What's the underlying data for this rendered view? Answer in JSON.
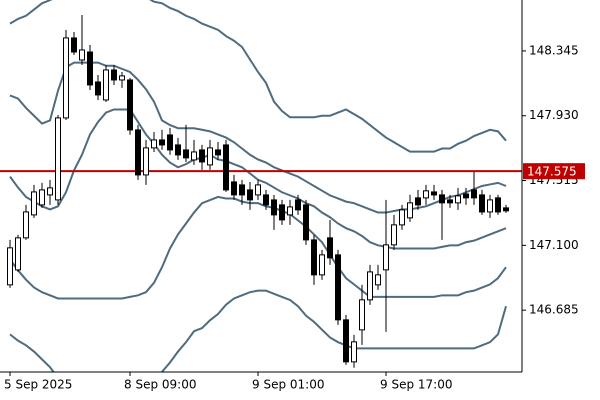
{
  "chart_data": {
    "type": "candlestick",
    "categories": [
      "5 Sep 2025",
      null,
      null,
      null,
      null,
      null,
      null,
      null,
      null,
      null,
      null,
      null,
      null,
      null,
      null,
      "8 Sep 09:00",
      null,
      null,
      null,
      null,
      null,
      null,
      null,
      null,
      null,
      null,
      null,
      null,
      null,
      null,
      null,
      "9 Sep 01:00",
      null,
      null,
      null,
      null,
      null,
      null,
      null,
      null,
      null,
      null,
      null,
      null,
      null,
      null,
      null,
      "9 Sep 17:00",
      null,
      null,
      null,
      null,
      null,
      null,
      null,
      null,
      null,
      null,
      null,
      null,
      null,
      null,
      null
    ],
    "open": [
      146.847,
      146.943,
      147.148,
      147.295,
      147.359,
      147.423,
      147.391,
      147.916,
      148.428,
      148.287,
      148.338,
      148.146,
      148.031,
      148.223,
      148.159,
      148.159,
      147.839,
      147.551,
      147.724,
      147.775,
      147.807,
      147.743,
      147.711,
      147.647,
      147.711,
      147.615,
      147.711,
      147.743,
      147.506,
      147.487,
      147.455,
      147.423,
      147.423,
      147.391,
      147.359,
      147.295,
      147.391,
      147.359,
      147.135,
      146.911,
      147.148,
      147.039,
      146.623,
      146.354,
      146.559,
      146.751,
      146.847,
      146.943,
      147.103,
      147.231,
      147.276,
      147.404,
      147.404,
      147.442,
      147.423,
      147.391,
      147.372,
      147.429,
      147.455,
      147.423,
      147.314,
      147.404,
      147.34
    ],
    "high": [
      147.135,
      147.167,
      147.359,
      147.487,
      147.5,
      147.519,
      147.935,
      148.479,
      148.466,
      148.575,
      148.383,
      148.191,
      148.255,
      148.255,
      148.21,
      148.172,
      147.871,
      147.775,
      147.826,
      147.839,
      147.852,
      147.788,
      147.871,
      147.775,
      147.743,
      147.775,
      147.762,
      147.775,
      147.551,
      147.519,
      147.506,
      147.519,
      147.455,
      147.423,
      147.391,
      147.391,
      147.423,
      147.391,
      147.167,
      147.071,
      147.263,
      147.071,
      146.655,
      146.527,
      146.847,
      146.975,
      146.975,
      147.391,
      147.295,
      147.359,
      147.423,
      147.455,
      147.487,
      147.487,
      147.455,
      147.423,
      147.468,
      147.468,
      147.57,
      147.455,
      147.423,
      147.423,
      147.359
    ],
    "low": [
      146.828,
      146.93,
      147.135,
      147.276,
      147.34,
      147.359,
      147.359,
      147.903,
      148.319,
      148.255,
      148.095,
      148.031,
      148.018,
      148.127,
      148.108,
      147.807,
      147.519,
      147.487,
      147.698,
      147.711,
      147.679,
      147.647,
      147.634,
      147.615,
      147.583,
      147.583,
      147.647,
      147.442,
      147.391,
      147.359,
      147.327,
      147.391,
      147.327,
      147.199,
      147.231,
      147.231,
      147.295,
      147.103,
      146.847,
      146.879,
      146.975,
      146.591,
      146.335,
      146.316,
      146.463,
      146.719,
      146.815,
      146.546,
      147.071,
      147.199,
      147.25,
      147.327,
      147.359,
      147.391,
      147.135,
      147.34,
      147.327,
      147.359,
      147.359,
      147.295,
      147.276,
      147.295,
      147.308
    ],
    "close": [
      147.084,
      147.148,
      147.314,
      147.442,
      147.455,
      147.468,
      147.916,
      148.428,
      148.338,
      148.351,
      148.127,
      148.063,
      148.223,
      148.159,
      148.185,
      147.839,
      147.551,
      147.724,
      147.775,
      147.743,
      147.711,
      147.679,
      147.66,
      147.698,
      147.634,
      147.724,
      147.679,
      147.455,
      147.423,
      147.423,
      147.391,
      147.487,
      147.359,
      147.295,
      147.263,
      147.346,
      147.327,
      147.135,
      146.911,
      147.039,
      147.02,
      146.623,
      146.354,
      146.482,
      146.751,
      146.93,
      146.911,
      147.103,
      147.231,
      147.327,
      147.372,
      147.359,
      147.449,
      147.423,
      147.372,
      147.372,
      147.417,
      147.404,
      147.404,
      147.314,
      147.391,
      147.314,
      147.321
    ],
    "up_color": "#ffffff",
    "down_color": "#000000",
    "series": [
      {
        "color": "#4e6b80",
        "values": [
          148.52,
          148.55,
          148.57,
          148.61,
          148.65,
          148.67,
          148.7,
          148.72,
          148.74,
          148.75,
          148.77,
          148.77,
          148.77,
          148.77,
          148.75,
          148.73,
          148.71,
          148.69,
          148.66,
          148.65,
          148.62,
          148.6,
          148.57,
          148.55,
          148.52,
          148.5,
          148.48,
          148.44,
          148.41,
          148.37,
          148.29,
          148.21,
          148.14,
          148.02,
          147.96,
          147.92,
          147.92,
          147.92,
          147.92,
          147.93,
          147.93,
          147.95,
          147.97,
          147.94,
          147.91,
          147.87,
          147.83,
          147.79,
          147.76,
          147.73,
          147.7,
          147.7,
          147.7,
          147.7,
          147.72,
          147.72,
          147.75,
          147.77,
          147.8,
          147.82,
          147.84,
          147.83,
          147.77
        ]
      },
      {
        "color": "#4e6b80",
        "values": [
          148.06,
          148.04,
          147.98,
          147.93,
          147.88,
          147.9,
          148.09,
          148.24,
          148.27,
          148.27,
          148.27,
          148.27,
          148.25,
          148.25,
          148.23,
          148.21,
          148.16,
          148.1,
          148.02,
          147.9,
          147.87,
          147.85,
          147.85,
          147.85,
          147.84,
          147.83,
          147.81,
          147.79,
          147.76,
          147.72,
          147.68,
          147.65,
          147.63,
          147.6,
          147.58,
          147.56,
          147.54,
          147.51,
          147.48,
          147.45,
          147.42,
          147.4,
          147.38,
          147.37,
          147.35,
          147.33,
          147.31,
          147.31,
          147.32,
          147.33,
          147.33,
          147.34,
          147.35,
          147.37,
          147.39,
          147.41,
          147.42,
          147.44,
          147.46,
          147.48,
          147.49,
          147.5,
          147.48
        ]
      },
      {
        "color": "#4e6b80",
        "values": [
          147.54,
          147.47,
          147.41,
          147.38,
          147.35,
          147.33,
          147.35,
          147.44,
          147.58,
          147.68,
          147.81,
          147.89,
          147.95,
          147.97,
          147.97,
          147.97,
          147.89,
          147.81,
          147.75,
          147.68,
          147.63,
          147.6,
          147.62,
          147.65,
          147.66,
          147.68,
          147.65,
          147.64,
          147.62,
          147.6,
          147.56,
          147.52,
          147.5,
          147.47,
          147.44,
          147.42,
          147.4,
          147.37,
          147.35,
          147.31,
          147.28,
          147.24,
          147.21,
          147.19,
          147.16,
          147.12,
          147.1,
          147.09,
          147.08,
          147.08,
          147.08,
          147.08,
          147.08,
          147.08,
          147.09,
          147.1,
          147.1,
          147.12,
          147.13,
          147.15,
          147.17,
          147.19,
          147.21
        ]
      },
      {
        "color": "#4e6b80",
        "values": [
          147.01,
          146.94,
          146.88,
          146.83,
          146.8,
          146.78,
          146.76,
          146.76,
          146.76,
          146.76,
          146.76,
          146.76,
          146.76,
          146.76,
          146.76,
          146.77,
          146.78,
          146.8,
          146.86,
          146.96,
          147.08,
          147.17,
          147.24,
          147.31,
          147.37,
          147.39,
          147.41,
          147.4,
          147.4,
          147.38,
          147.37,
          147.37,
          147.35,
          147.34,
          147.32,
          147.3,
          147.26,
          147.22,
          147.17,
          147.12,
          147.04,
          146.96,
          146.89,
          146.85,
          146.81,
          146.77,
          146.77,
          146.77,
          146.77,
          146.77,
          146.77,
          146.77,
          146.77,
          146.77,
          146.78,
          146.78,
          146.78,
          146.8,
          146.81,
          146.83,
          146.85,
          146.89,
          146.96
        ]
      },
      {
        "color": "#4e6b80",
        "values": [
          146.53,
          146.49,
          146.46,
          146.42,
          146.37,
          146.32,
          146.25,
          146.23,
          146.23,
          146.22,
          146.21,
          146.21,
          146.2,
          146.19,
          146.19,
          146.18,
          146.17,
          146.18,
          146.21,
          146.29,
          146.35,
          146.42,
          146.48,
          146.55,
          146.57,
          146.62,
          146.66,
          146.72,
          146.76,
          146.78,
          146.8,
          146.81,
          146.81,
          146.79,
          146.77,
          146.75,
          146.71,
          146.65,
          146.61,
          146.56,
          146.51,
          146.48,
          146.46,
          146.44,
          146.44,
          146.44,
          146.44,
          146.44,
          146.44,
          146.44,
          146.44,
          146.44,
          146.44,
          146.44,
          146.44,
          146.44,
          146.44,
          146.44,
          146.44,
          146.46,
          146.48,
          146.53,
          146.71
        ]
      }
    ],
    "hline": {
      "value": 147.575,
      "color": "#c00000"
    },
    "ylim": [
      146.289,
      148.671
    ],
    "yticks": [
      148.345,
      {
        "value": 147.93,
        "label": "147.930"
      },
      147.515,
      {
        "value": 147.1,
        "label": "147.100"
      },
      146.685
    ],
    "grid": false
  }
}
